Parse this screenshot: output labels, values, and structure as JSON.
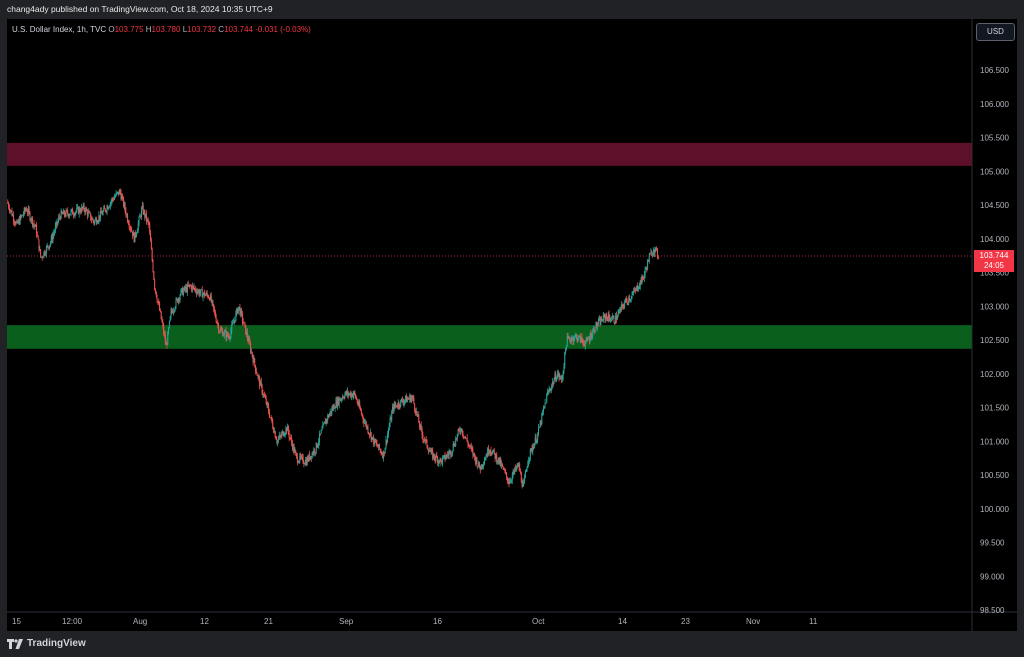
{
  "header": {
    "published_text": "chang4ady published on TradingView.com, Oct 18, 2024 10:35 UTC+9"
  },
  "legend": {
    "symbol": "U.S. Dollar Index, 1h, TVC",
    "open_key": "O",
    "open": "103.775",
    "high_key": "H",
    "high": "103.780",
    "low_key": "L",
    "low": "103.732",
    "close_key": "C",
    "close": "103.744",
    "change": "-0.031 (-0.03%)"
  },
  "currency_button": "USD",
  "price_label": {
    "price": "103.744",
    "countdown": "24:05"
  },
  "footer": {
    "brand": "TradingView"
  },
  "colors": {
    "up": "#26a69a",
    "down": "#ef5350",
    "resistance_zone": "#5e0f2a",
    "support_zone": "#0a5f1c",
    "last_price": "#f23645",
    "background": "#000000"
  },
  "chart_data": {
    "type": "candlestick",
    "title": "U.S. Dollar Index, 1h, TVC",
    "y_ticks": [
      "106.500",
      "106.000",
      "105.500",
      "105.000",
      "104.500",
      "104.000",
      "103.500",
      "103.000",
      "102.500",
      "102.000",
      "101.500",
      "101.000",
      "100.500",
      "100.000",
      "99.500",
      "99.000",
      "98.500"
    ],
    "x_ticks": [
      "15",
      "12:00",
      "Aug",
      "12",
      "21",
      "Sep",
      "16",
      "Oct",
      "14",
      "23",
      "Nov",
      "11"
    ],
    "ylim": [
      98.45,
      107.0
    ],
    "zones": [
      {
        "name": "resistance",
        "low": 105.08,
        "high": 105.42
      },
      {
        "name": "support",
        "low": 102.37,
        "high": 102.72
      }
    ],
    "last_price": 103.744,
    "price_path": [
      [
        0,
        104.55
      ],
      [
        0.01,
        104.2
      ],
      [
        0.02,
        104.45
      ],
      [
        0.03,
        104.15
      ],
      [
        0.035,
        103.72
      ],
      [
        0.045,
        103.95
      ],
      [
        0.055,
        104.35
      ],
      [
        0.07,
        104.4
      ],
      [
        0.08,
        104.45
      ],
      [
        0.09,
        104.25
      ],
      [
        0.1,
        104.4
      ],
      [
        0.11,
        104.6
      ],
      [
        0.117,
        104.7
      ],
      [
        0.125,
        104.3
      ],
      [
        0.132,
        104.0
      ],
      [
        0.14,
        104.45
      ],
      [
        0.147,
        104.2
      ],
      [
        0.153,
        103.3
      ],
      [
        0.16,
        102.8
      ],
      [
        0.165,
        102.4
      ],
      [
        0.17,
        102.9
      ],
      [
        0.18,
        103.2
      ],
      [
        0.19,
        103.3
      ],
      [
        0.2,
        103.2
      ],
      [
        0.21,
        103.15
      ],
      [
        0.22,
        102.65
      ],
      [
        0.23,
        102.55
      ],
      [
        0.24,
        103.0
      ],
      [
        0.25,
        102.5
      ],
      [
        0.26,
        101.95
      ],
      [
        0.27,
        101.5
      ],
      [
        0.28,
        101.0
      ],
      [
        0.29,
        101.2
      ],
      [
        0.3,
        100.75
      ],
      [
        0.31,
        100.7
      ],
      [
        0.32,
        100.9
      ],
      [
        0.33,
        101.3
      ],
      [
        0.34,
        101.55
      ],
      [
        0.35,
        101.7
      ],
      [
        0.36,
        101.7
      ],
      [
        0.37,
        101.3
      ],
      [
        0.38,
        101.0
      ],
      [
        0.39,
        100.8
      ],
      [
        0.4,
        101.5
      ],
      [
        0.41,
        101.6
      ],
      [
        0.42,
        101.65
      ],
      [
        0.43,
        101.1
      ],
      [
        0.44,
        100.8
      ],
      [
        0.45,
        100.7
      ],
      [
        0.46,
        100.85
      ],
      [
        0.47,
        101.2
      ],
      [
        0.48,
        100.9
      ],
      [
        0.49,
        100.6
      ],
      [
        0.5,
        100.9
      ],
      [
        0.51,
        100.7
      ],
      [
        0.52,
        100.4
      ],
      [
        0.53,
        100.65
      ],
      [
        0.535,
        100.3
      ],
      [
        0.54,
        100.75
      ],
      [
        0.55,
        101.1
      ],
      [
        0.56,
        101.7
      ],
      [
        0.57,
        102.0
      ],
      [
        0.575,
        101.9
      ],
      [
        0.58,
        102.5
      ],
      [
        0.59,
        102.55
      ],
      [
        0.6,
        102.45
      ],
      [
        0.61,
        102.7
      ],
      [
        0.62,
        102.85
      ],
      [
        0.63,
        102.8
      ],
      [
        0.64,
        103.05
      ],
      [
        0.65,
        103.2
      ],
      [
        0.66,
        103.45
      ],
      [
        0.665,
        103.7
      ],
      [
        0.67,
        103.86
      ],
      [
        0.675,
        103.744
      ]
    ]
  }
}
